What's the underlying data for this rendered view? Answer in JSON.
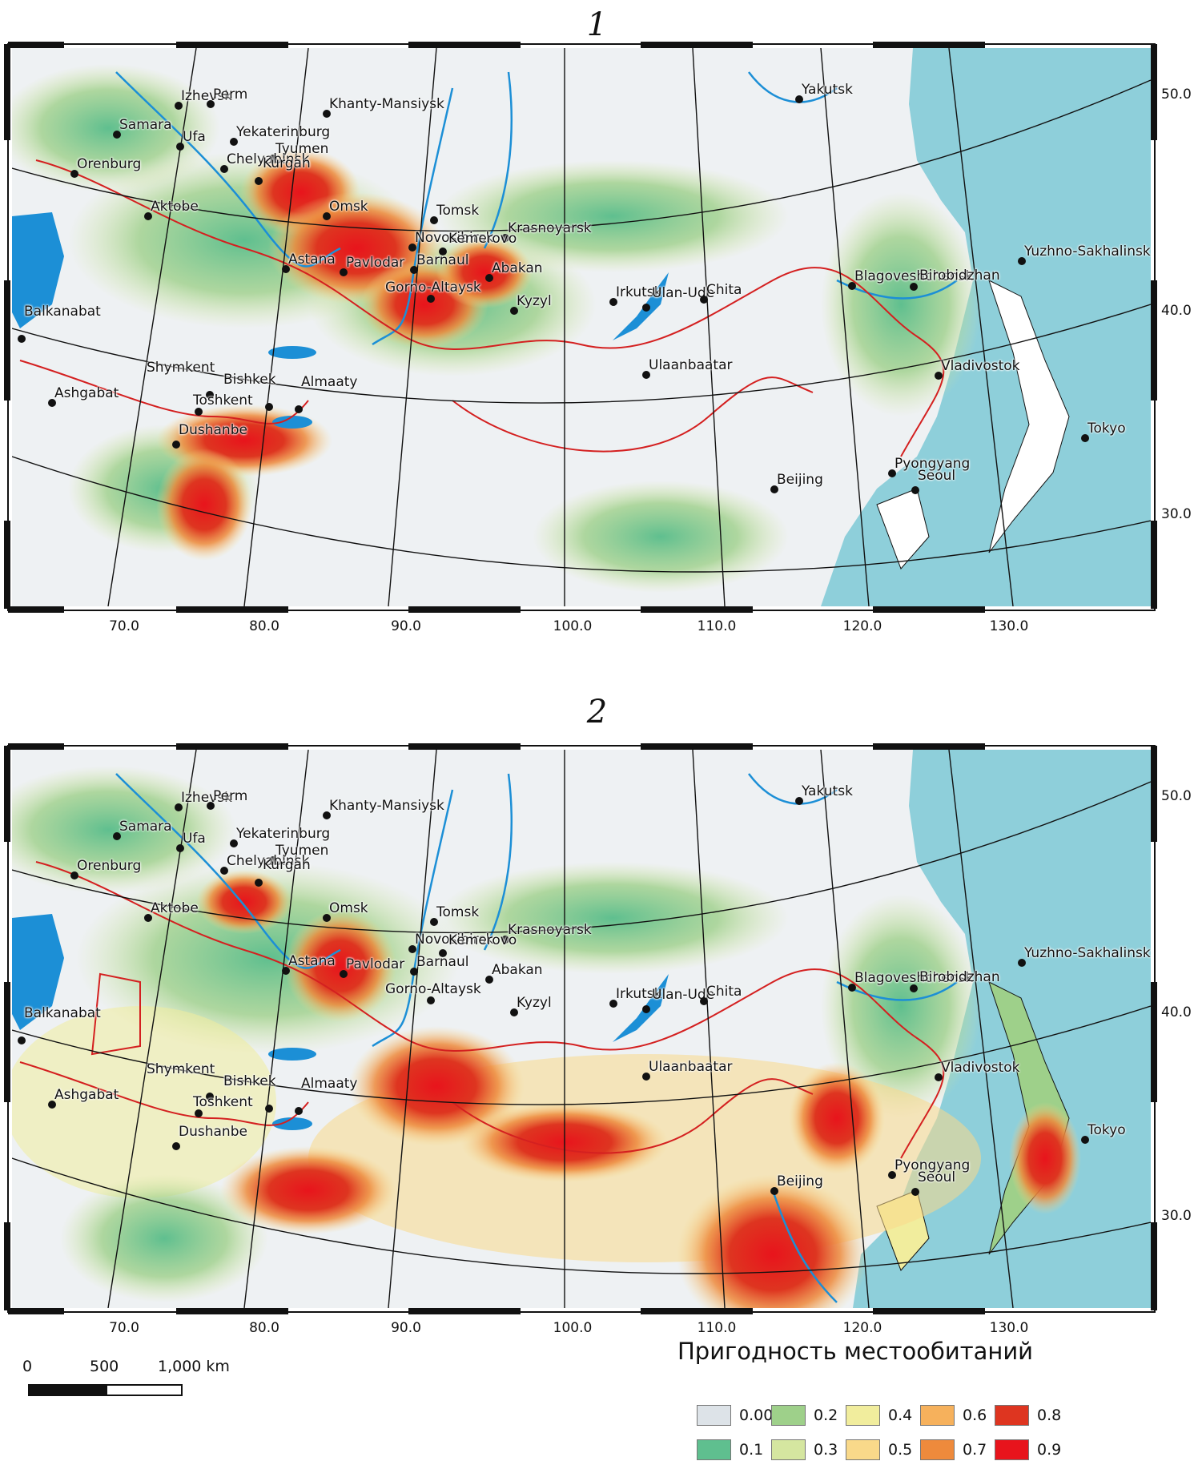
{
  "panels": [
    {
      "id": "1",
      "title": "1"
    },
    {
      "id": "2",
      "title": "2"
    }
  ],
  "axes": {
    "x_ticks": [
      "70.0",
      "80.0",
      "90.0",
      "100.0",
      "110.0",
      "120.0",
      "130.0"
    ],
    "y_ticks": [
      "50.0",
      "40.0",
      "30.0"
    ]
  },
  "cities": [
    "Izhevsk",
    "Perm",
    "Khanty-Mansiysk",
    "Yakutsk",
    "Samara",
    "Ufa",
    "Yekaterinburg",
    "Tyumen",
    "Orenburg",
    "Chelyabinsk",
    "Kurgan",
    "Aktobe",
    "Omsk",
    "Tomsk",
    "Novosibirsk",
    "Krasnoyarsk",
    "Kemerovo",
    "Astana",
    "Pavlodar",
    "Barnaul",
    "Abakan",
    "Gorno-Altaysk",
    "Kyzyl",
    "Irkutsk",
    "Ulan-Ude",
    "Chita",
    "Blagoveshchensk",
    "Birobidzhan",
    "Yuzhno-Sakhalinsk",
    "Balkanabat",
    "Ulaanbaatar",
    "Vladivostok",
    "Shymkent",
    "Ashgabat",
    "Bishkek",
    "Almaaty",
    "Toshkent",
    "Dushanbe",
    "Tokyo",
    "Pyongyang",
    "Beijing",
    "Seoul"
  ],
  "scale_bar": {
    "labels": [
      "0",
      "500",
      "1,000 km"
    ]
  },
  "legend": {
    "title": "Пригодность местообитаний",
    "items": [
      {
        "label": "0.001",
        "color": "#dde3e8"
      },
      {
        "label": "0.1",
        "color": "#5fbf8f"
      },
      {
        "label": "0.2",
        "color": "#9ed08a"
      },
      {
        "label": "0.3",
        "color": "#d5e6a0"
      },
      {
        "label": "0.4",
        "color": "#f1ed9d"
      },
      {
        "label": "0.5",
        "color": "#f9d98a"
      },
      {
        "label": "0.6",
        "color": "#f6b15c"
      },
      {
        "label": "0.7",
        "color": "#ee8a3c"
      },
      {
        "label": "0.8",
        "color": "#de3520"
      },
      {
        "label": "0.9",
        "color": "#e8141c"
      }
    ]
  },
  "colors": {
    "sea": "#8ecfda",
    "lakes_rivers": "#1c8fd6",
    "borders": "#d42020",
    "graticule": "#111111"
  }
}
